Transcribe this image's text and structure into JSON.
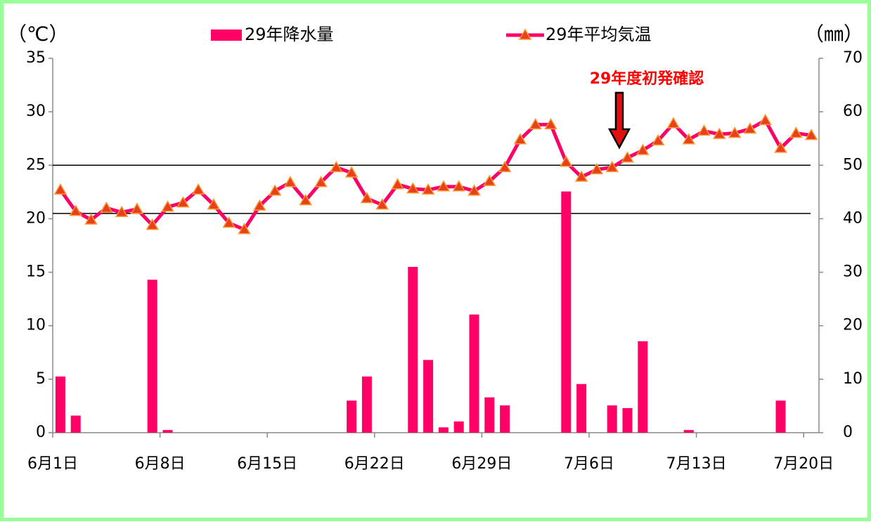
{
  "chart_data": {
    "type": "bar-line",
    "y_label": "（℃）",
    "y2_label": "（㎜）",
    "annotation": "29年度初発確認",
    "categories": [
      "6月1日",
      null,
      null,
      null,
      null,
      null,
      null,
      "6月8日",
      null,
      null,
      null,
      null,
      null,
      null,
      "6月15日",
      null,
      null,
      null,
      null,
      null,
      null,
      "6月22日",
      null,
      null,
      null,
      null,
      null,
      null,
      "6月29日",
      null,
      null,
      null,
      null,
      null,
      null,
      "7月6日",
      null,
      null,
      null,
      null,
      null,
      null,
      "7月13日",
      null,
      null,
      null,
      null,
      null,
      null,
      "7月20日"
    ],
    "series": [
      {
        "name": "29年降水量",
        "type": "bar",
        "axis": "y2",
        "color": "#ff0066",
        "values": [
          10.5,
          3.2,
          0,
          0,
          0,
          0,
          28.6,
          0.5,
          0,
          0,
          0,
          0,
          0,
          0,
          0,
          0,
          0,
          0,
          0,
          6.0,
          10.5,
          0,
          0,
          31.0,
          13.6,
          1.0,
          2.1,
          22.1,
          6.6,
          5.1,
          0,
          0,
          0,
          45.1,
          9.1,
          0,
          5.1,
          4.6,
          17.1,
          0,
          0,
          0.5,
          0,
          0,
          0,
          0,
          0,
          6.0,
          0,
          0
        ]
      },
      {
        "name": "29年平均気温",
        "type": "line",
        "axis": "y",
        "color": "#ff0066",
        "marker_color": "#e8401a",
        "values": [
          22.7,
          20.7,
          19.9,
          21.0,
          20.6,
          20.9,
          19.4,
          21.1,
          21.5,
          22.7,
          21.3,
          19.6,
          19.0,
          21.2,
          22.6,
          23.4,
          21.7,
          23.4,
          24.8,
          24.3,
          21.9,
          21.3,
          23.2,
          22.8,
          22.7,
          23.0,
          23.0,
          22.6,
          23.5,
          24.8,
          27.4,
          28.8,
          28.8,
          25.3,
          23.9,
          24.6,
          24.8,
          25.7,
          26.4,
          27.3,
          28.9,
          27.4,
          28.2,
          27.9,
          28.0,
          28.4,
          29.2,
          26.6,
          28.0,
          27.8
        ]
      }
    ],
    "reference_lines": [
      25,
      20.5
    ],
    "ylim": [
      0,
      35
    ],
    "yticks": [
      0,
      5,
      10,
      15,
      20,
      25,
      30,
      35
    ],
    "y2lim": [
      0,
      70
    ],
    "y2ticks": [
      0,
      10,
      20,
      30,
      40,
      50,
      60,
      70
    ],
    "grid": false,
    "legend": "top"
  }
}
